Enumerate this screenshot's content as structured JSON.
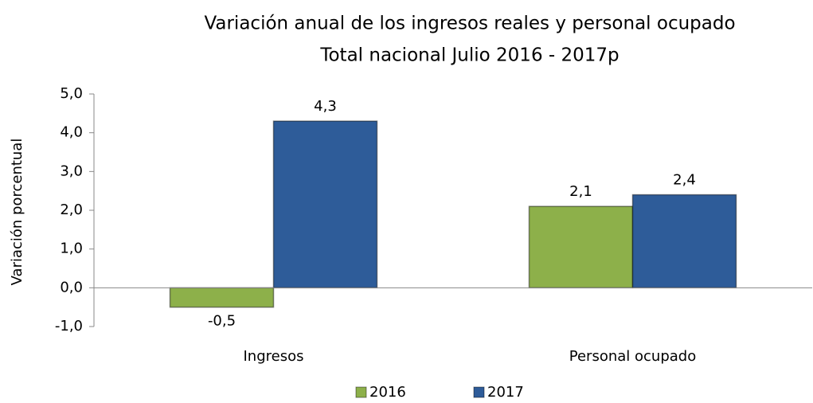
{
  "chart_data": {
    "type": "bar",
    "title": "Variación anual de los ingresos reales y personal ocupado",
    "subtitle": "Total nacional Julio 2016 - 2017p",
    "y_label": "Variación porcentual",
    "categories": [
      "Ingresos",
      "Personal ocupado"
    ],
    "series": [
      {
        "name": "2016",
        "color": "#8db04a",
        "values": [
          -0.5,
          2.1
        ],
        "value_labels": [
          "-0,5",
          "2,1"
        ]
      },
      {
        "name": "2017",
        "color": "#2e5c99",
        "values": [
          4.3,
          2.4
        ],
        "value_labels": [
          "4,3",
          "2,4"
        ]
      }
    ],
    "ylim": [
      -1,
      5
    ],
    "yticks": [
      {
        "value": -1,
        "label": "-1,0"
      },
      {
        "value": 0,
        "label": "0,0"
      },
      {
        "value": 1,
        "label": "1,0"
      },
      {
        "value": 2,
        "label": "2,0"
      },
      {
        "value": 3,
        "label": "3,0"
      },
      {
        "value": 4,
        "label": "4,0"
      },
      {
        "value": 5,
        "label": "5,0"
      }
    ],
    "grid": false,
    "legend": "bottom"
  }
}
